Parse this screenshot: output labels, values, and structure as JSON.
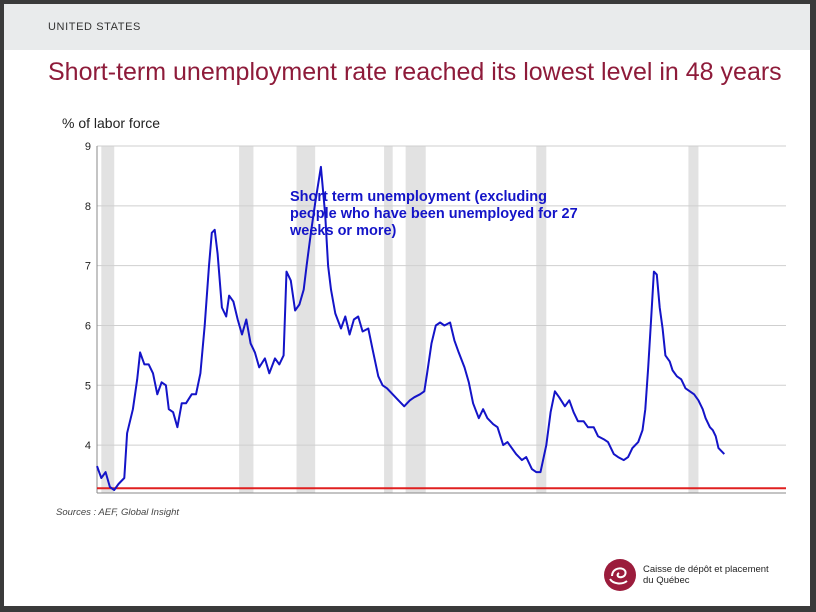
{
  "header": {
    "section": "UNITED STATES",
    "title": "Short-term unemployment rate reached its lowest level in 48 years"
  },
  "footer": {
    "sources": "Sources : AEF, Global Insight",
    "logo_line1": "Caisse de dépôt et placement",
    "logo_line2": "du Québec"
  },
  "colors": {
    "title": "#8e1b3a",
    "series": "#1414c8",
    "reference_line": "#e02020",
    "recession_band": "#e2e2e2",
    "logo": "#9b1c3c"
  },
  "chart_data": {
    "type": "line",
    "ylabel": "% of labor force",
    "ylim": [
      3.2,
      9
    ],
    "yticks": [
      4,
      5,
      6,
      7,
      8,
      9
    ],
    "xlim": [
      1960,
      2008
    ],
    "grid": true,
    "annotation": "Short term unemployment (excluding people who have been unemployed for 27 weeks or more)",
    "reference_line": {
      "value": 3.28
    },
    "recession_periods": [
      [
        1960.3,
        1961.2
      ],
      [
        1969.9,
        1970.9
      ],
      [
        1973.9,
        1975.2
      ],
      [
        1980.0,
        1980.6
      ],
      [
        1981.5,
        1982.9
      ],
      [
        1990.6,
        1991.3
      ],
      [
        2001.2,
        2001.9
      ]
    ],
    "series": [
      {
        "points": [
          [
            1960.0,
            3.65
          ],
          [
            1960.3,
            3.45
          ],
          [
            1960.6,
            3.55
          ],
          [
            1960.9,
            3.3
          ],
          [
            1961.2,
            3.25
          ],
          [
            1961.5,
            3.35
          ],
          [
            1961.9,
            3.45
          ],
          [
            1962.1,
            4.2
          ],
          [
            1962.5,
            4.6
          ],
          [
            1962.8,
            5.1
          ],
          [
            1963.0,
            5.55
          ],
          [
            1963.3,
            5.35
          ],
          [
            1963.6,
            5.35
          ],
          [
            1963.9,
            5.2
          ],
          [
            1964.2,
            4.85
          ],
          [
            1964.5,
            5.05
          ],
          [
            1964.8,
            5.0
          ],
          [
            1965.0,
            4.6
          ],
          [
            1965.3,
            4.55
          ],
          [
            1965.6,
            4.3
          ],
          [
            1965.9,
            4.7
          ],
          [
            1966.2,
            4.7
          ],
          [
            1966.6,
            4.85
          ],
          [
            1966.9,
            4.85
          ],
          [
            1967.2,
            5.2
          ],
          [
            1967.5,
            6.0
          ],
          [
            1967.8,
            7.0
          ],
          [
            1968.0,
            7.55
          ],
          [
            1968.2,
            7.6
          ],
          [
            1968.4,
            7.2
          ],
          [
            1968.7,
            6.3
          ],
          [
            1969.0,
            6.15
          ],
          [
            1969.2,
            6.5
          ],
          [
            1969.5,
            6.4
          ],
          [
            1969.8,
            6.1
          ],
          [
            1970.1,
            5.85
          ],
          [
            1970.4,
            6.1
          ],
          [
            1970.7,
            5.7
          ],
          [
            1971.0,
            5.55
          ],
          [
            1971.3,
            5.3
          ],
          [
            1971.7,
            5.45
          ],
          [
            1972.0,
            5.2
          ],
          [
            1972.4,
            5.45
          ],
          [
            1972.7,
            5.35
          ],
          [
            1973.0,
            5.5
          ],
          [
            1973.2,
            6.9
          ],
          [
            1973.5,
            6.75
          ],
          [
            1973.8,
            6.25
          ],
          [
            1974.1,
            6.35
          ],
          [
            1974.4,
            6.6
          ],
          [
            1974.6,
            7.0
          ],
          [
            1974.9,
            7.55
          ],
          [
            1975.2,
            8.05
          ],
          [
            1975.6,
            8.65
          ],
          [
            1975.9,
            7.85
          ],
          [
            1976.1,
            7.0
          ],
          [
            1976.3,
            6.6
          ],
          [
            1976.6,
            6.2
          ],
          [
            1977.0,
            5.95
          ],
          [
            1977.3,
            6.15
          ],
          [
            1977.6,
            5.85
          ],
          [
            1977.9,
            6.1
          ],
          [
            1978.2,
            6.15
          ],
          [
            1978.5,
            5.9
          ],
          [
            1978.9,
            5.95
          ],
          [
            1979.2,
            5.6
          ],
          [
            1979.6,
            5.15
          ],
          [
            1979.9,
            5.0
          ],
          [
            1980.2,
            4.95
          ],
          [
            1980.6,
            4.85
          ],
          [
            1981.0,
            4.75
          ],
          [
            1981.4,
            4.65
          ],
          [
            1981.8,
            4.75
          ],
          [
            1982.1,
            4.8
          ],
          [
            1982.5,
            4.85
          ],
          [
            1982.8,
            4.9
          ],
          [
            1983.0,
            5.2
          ],
          [
            1983.3,
            5.7
          ],
          [
            1983.6,
            6.0
          ],
          [
            1983.9,
            6.05
          ],
          [
            1984.2,
            6.0
          ],
          [
            1984.6,
            6.05
          ],
          [
            1984.9,
            5.75
          ],
          [
            1985.2,
            5.55
          ],
          [
            1985.6,
            5.3
          ],
          [
            1985.9,
            5.05
          ],
          [
            1986.2,
            4.7
          ],
          [
            1986.6,
            4.45
          ],
          [
            1986.9,
            4.6
          ],
          [
            1987.2,
            4.45
          ],
          [
            1987.6,
            4.35
          ],
          [
            1987.9,
            4.3
          ],
          [
            1988.3,
            4.0
          ],
          [
            1988.6,
            4.05
          ],
          [
            1988.9,
            3.95
          ],
          [
            1989.2,
            3.85
          ],
          [
            1989.6,
            3.75
          ],
          [
            1989.9,
            3.8
          ],
          [
            1990.3,
            3.6
          ],
          [
            1990.6,
            3.55
          ],
          [
            1990.9,
            3.55
          ],
          [
            1991.3,
            4.0
          ],
          [
            1991.6,
            4.55
          ],
          [
            1991.9,
            4.9
          ],
          [
            1992.2,
            4.8
          ],
          [
            1992.6,
            4.65
          ],
          [
            1992.9,
            4.75
          ],
          [
            1993.2,
            4.55
          ],
          [
            1993.5,
            4.4
          ],
          [
            1993.9,
            4.4
          ],
          [
            1994.2,
            4.3
          ],
          [
            1994.6,
            4.3
          ],
          [
            1994.9,
            4.15
          ],
          [
            1995.3,
            4.1
          ],
          [
            1995.6,
            4.05
          ],
          [
            1996.0,
            3.85
          ],
          [
            1996.3,
            3.8
          ],
          [
            1996.7,
            3.75
          ],
          [
            1997.0,
            3.8
          ],
          [
            1997.3,
            3.95
          ],
          [
            1997.7,
            4.05
          ],
          [
            1998.0,
            4.25
          ],
          [
            1998.2,
            4.6
          ],
          [
            1998.4,
            5.3
          ],
          [
            1998.6,
            6.1
          ],
          [
            1998.8,
            6.9
          ],
          [
            1999.0,
            6.85
          ],
          [
            1999.2,
            6.3
          ],
          [
            1999.4,
            5.95
          ],
          [
            1999.6,
            5.5
          ],
          [
            1999.9,
            5.4
          ],
          [
            2000.1,
            5.25
          ],
          [
            2000.4,
            5.15
          ],
          [
            2000.7,
            5.1
          ],
          [
            2001.0,
            4.95
          ],
          [
            2001.3,
            4.9
          ],
          [
            2001.6,
            4.85
          ],
          [
            2001.9,
            4.75
          ],
          [
            2002.2,
            4.6
          ],
          [
            2002.4,
            4.45
          ],
          [
            2002.7,
            4.3
          ],
          [
            2002.9,
            4.25
          ],
          [
            2003.1,
            4.15
          ],
          [
            2003.3,
            3.95
          ],
          [
            2003.5,
            3.9
          ],
          [
            2003.7,
            3.85
          ]
        ]
      }
    ]
  }
}
